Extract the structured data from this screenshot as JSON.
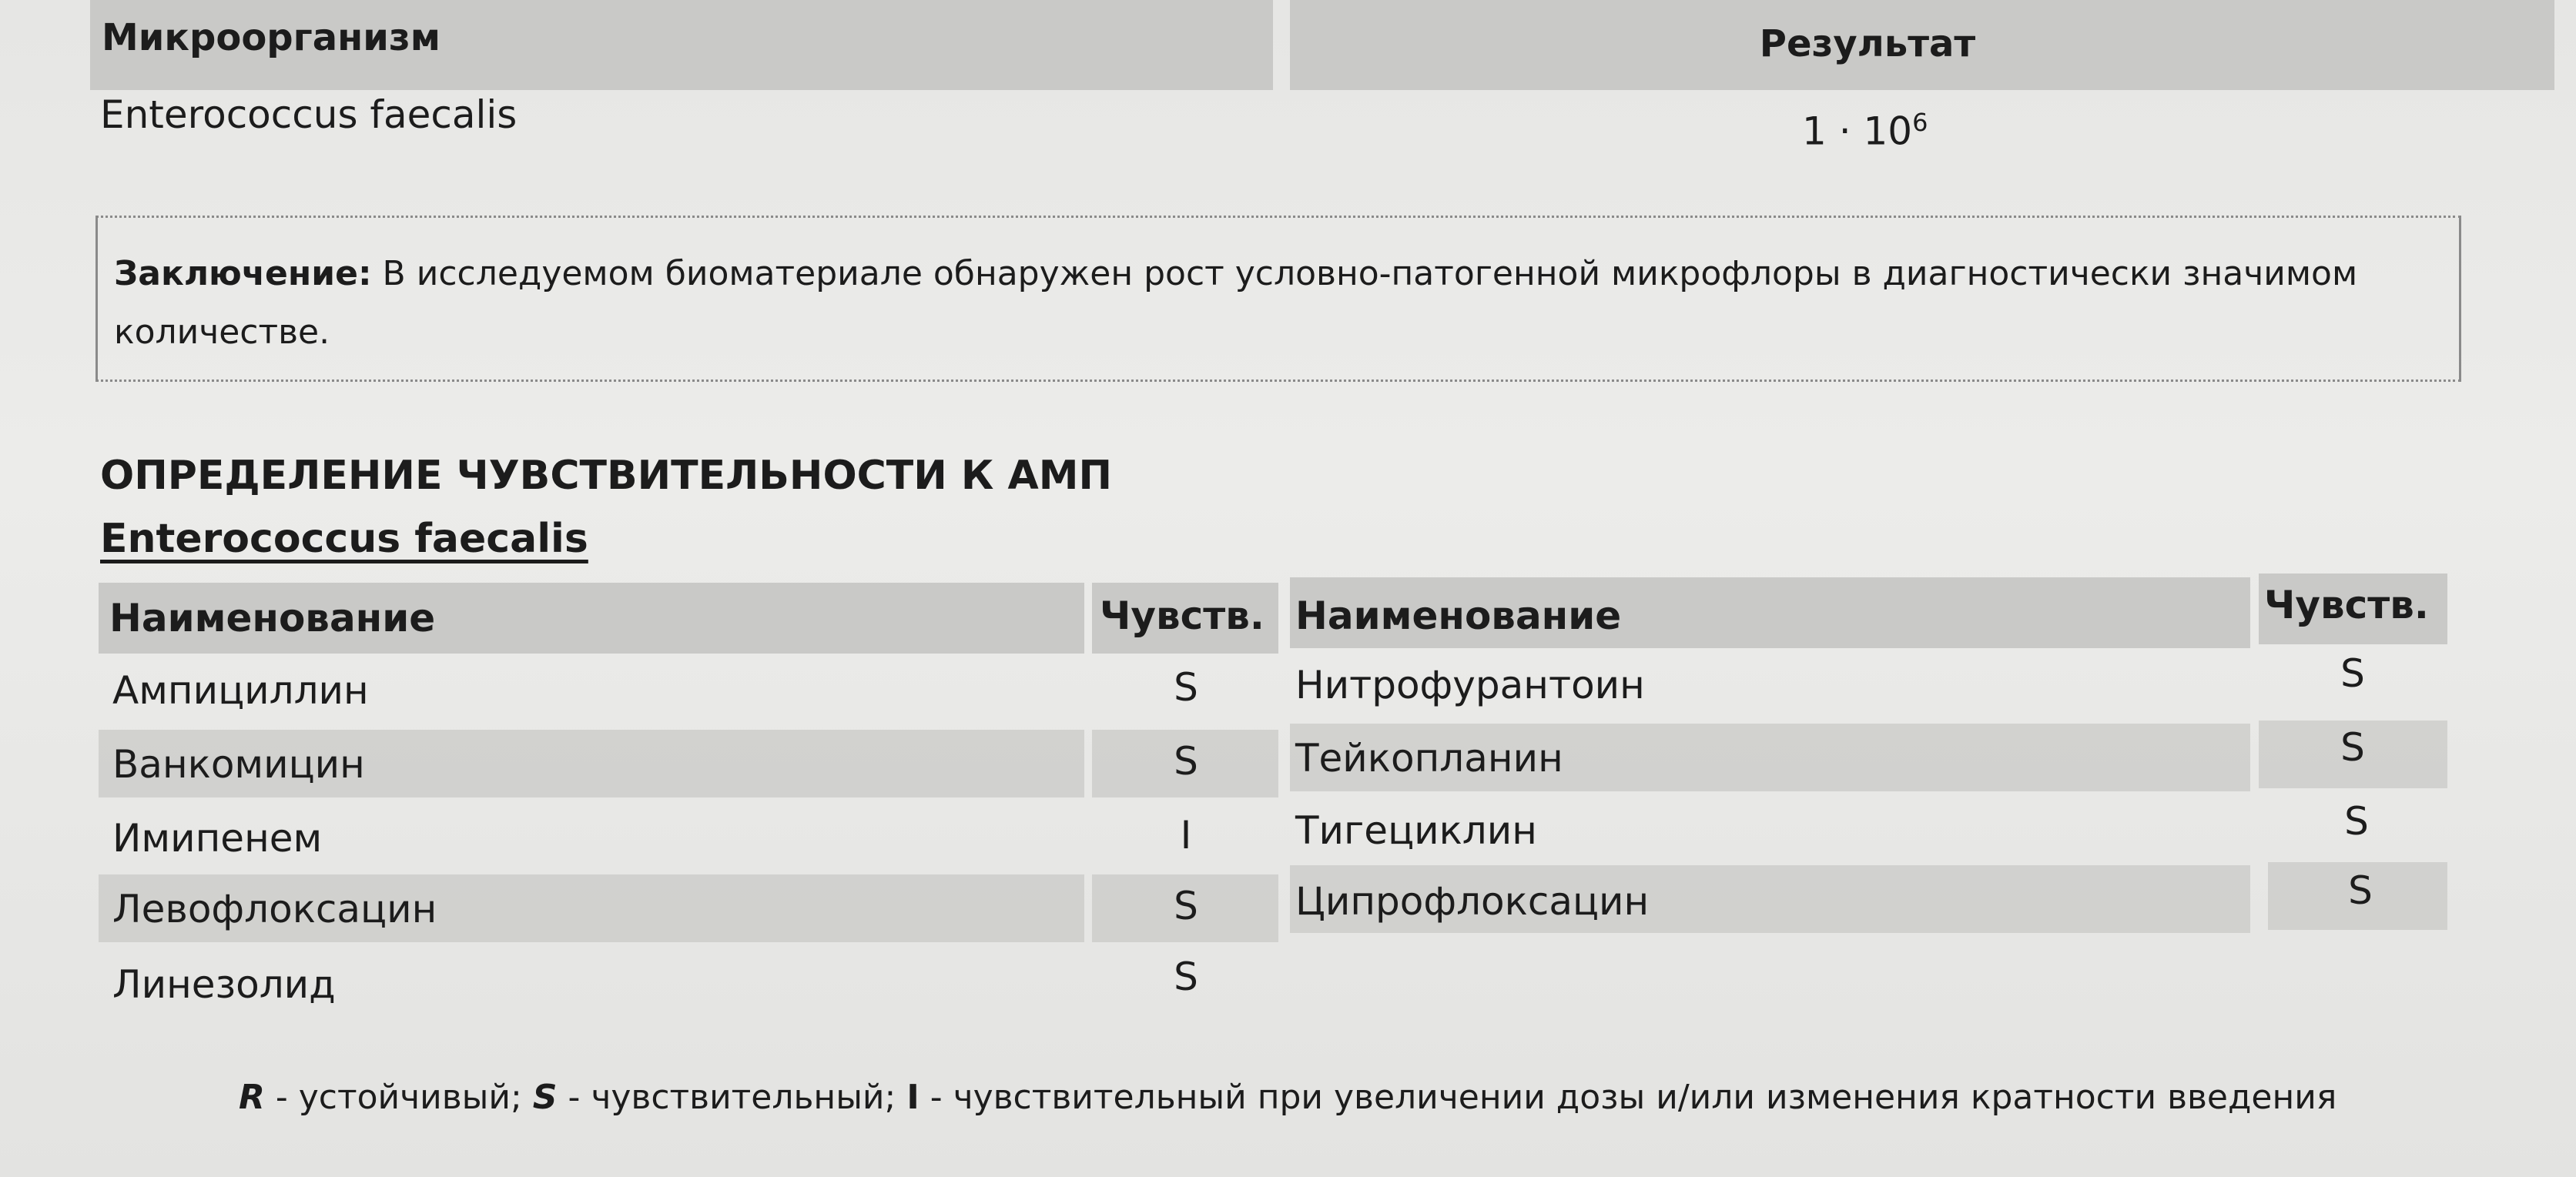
{
  "result_table": {
    "headers": {
      "organism": "Микроорганизм",
      "result": "Результат"
    },
    "row": {
      "organism": "Enterococcus faecalis",
      "result_base": "1 · 10",
      "result_exponent": "6"
    }
  },
  "conclusion": {
    "label": "Заключение:",
    "text_line1": "В исследуемом биоматериале обнаружен рост условно-патогенной микрофлоры в диагностически значимом",
    "text_line2": "количестве."
  },
  "sensitivity": {
    "title": "ОПРЕДЕЛЕНИЕ ЧУВСТВИТЕЛЬНОСТИ К АМП",
    "organism": "Enterococcus faecalis",
    "headers": {
      "name": "Наименование",
      "sens": "Чувств."
    },
    "left": [
      {
        "name": "Ампициллин",
        "sens": "S"
      },
      {
        "name": "Ванкомицин",
        "sens": "S"
      },
      {
        "name": "Имипенем",
        "sens": "I"
      },
      {
        "name": "Левофлоксацин",
        "sens": "S"
      },
      {
        "name": "Линезолид",
        "sens": "S"
      }
    ],
    "right": [
      {
        "name": "Нитрофурантоин",
        "sens": "S"
      },
      {
        "name": "Тейкопланин",
        "sens": "S"
      },
      {
        "name": "Тигециклин",
        "sens": "S"
      },
      {
        "name": "Ципрофлоксацин",
        "sens": "S"
      }
    ]
  },
  "legend": {
    "r": "R",
    "r_text": " - устойчивый; ",
    "s": "S",
    "s_text": " - чувствительный; ",
    "i": "I",
    "i_text": " - чувствительный при увеличении дозы и/или изменения кратности введения"
  }
}
